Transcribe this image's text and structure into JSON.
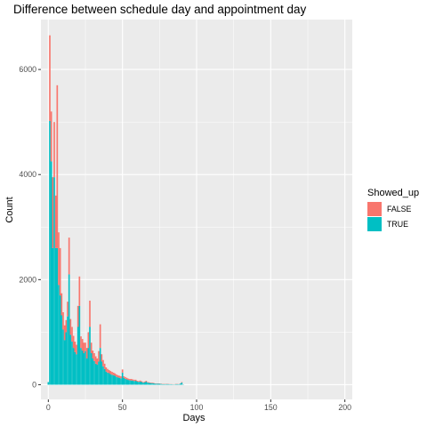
{
  "chart_data": {
    "type": "bar",
    "stacked": true,
    "title": "Difference between schedule day and appointment day",
    "xlabel": "Days",
    "ylabel": "Count",
    "xlim": [
      -5,
      205
    ],
    "ylim": [
      -280,
      6950
    ],
    "x_ticks": [
      0,
      50,
      100,
      150,
      200
    ],
    "y_ticks": [
      0,
      2000,
      4000,
      6000
    ],
    "grid": true,
    "legend": {
      "title": "Showed_up",
      "position": "right"
    },
    "colors": {
      "FALSE": "#F8766D",
      "TRUE": "#00BFC4"
    },
    "x": [
      0,
      1,
      2,
      3,
      4,
      5,
      6,
      7,
      8,
      9,
      10,
      11,
      12,
      13,
      14,
      15,
      16,
      17,
      18,
      19,
      20,
      21,
      22,
      23,
      24,
      25,
      26,
      27,
      28,
      29,
      30,
      31,
      32,
      33,
      34,
      35,
      36,
      37,
      38,
      39,
      40,
      41,
      42,
      43,
      44,
      45,
      46,
      47,
      48,
      49,
      50,
      51,
      52,
      53,
      54,
      55,
      56,
      57,
      58,
      59,
      60,
      61,
      62,
      63,
      64,
      65,
      66,
      67,
      68,
      69,
      70,
      71,
      72,
      73,
      74,
      75,
      76,
      77,
      78,
      79,
      80,
      81,
      82,
      83,
      84,
      85,
      86,
      87,
      88,
      89,
      90,
      91
    ],
    "series": [
      {
        "name": "TRUE",
        "values": [
          50,
          5020,
          4250,
          2600,
          3950,
          2600,
          2600,
          1900,
          1700,
          1320,
          1050,
          850,
          1000,
          1300,
          2100,
          950,
          820,
          700,
          620,
          580,
          1100,
          1500,
          700,
          650,
          600,
          640,
          500,
          700,
          1100,
          600,
          500,
          450,
          400,
          380,
          440,
          700,
          440,
          350,
          300,
          250,
          230,
          220,
          200,
          190,
          180,
          170,
          150,
          140,
          130,
          120,
          230,
          130,
          110,
          100,
          90,
          85,
          80,
          80,
          70,
          75,
          60,
          55,
          60,
          50,
          40,
          45,
          60,
          40,
          35,
          30,
          30,
          25,
          20,
          20,
          20,
          18,
          15,
          10,
          10,
          10,
          12,
          10,
          8,
          8,
          6,
          6,
          10,
          10,
          8,
          20,
          40,
          5
        ]
      },
      {
        "name": "FALSE",
        "values": [
          0,
          1630,
          950,
          1350,
          1050,
          1000,
          3100,
          1000,
          900,
          420,
          330,
          280,
          230,
          280,
          700,
          300,
          280,
          230,
          200,
          180,
          400,
          560,
          220,
          220,
          200,
          160,
          200,
          300,
          500,
          200,
          150,
          150,
          140,
          120,
          200,
          450,
          140,
          120,
          100,
          80,
          70,
          60,
          60,
          55,
          50,
          45,
          45,
          40,
          40,
          40,
          60,
          30,
          35,
          30,
          25,
          25,
          30,
          20,
          25,
          20,
          15,
          15,
          20,
          15,
          10,
          15,
          15,
          10,
          10,
          10,
          10,
          10,
          5,
          5,
          5,
          5,
          5,
          5,
          5,
          5,
          5,
          5,
          3,
          3,
          3,
          3,
          5,
          5,
          3,
          5,
          10,
          2
        ]
      }
    ]
  }
}
